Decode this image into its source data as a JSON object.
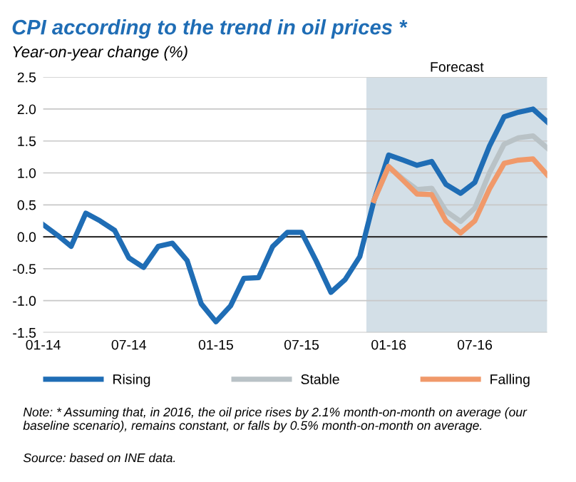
{
  "chart_data": {
    "type": "line",
    "title": "CPI according to the trend in oil prices *",
    "subtitle": "Year-on-year change (%)",
    "x": [
      "2014-01",
      "2014-02",
      "2014-03",
      "2014-04",
      "2014-05",
      "2014-06",
      "2014-07",
      "2014-08",
      "2014-09",
      "2014-10",
      "2014-11",
      "2014-12",
      "2015-01",
      "2015-02",
      "2015-03",
      "2015-04",
      "2015-05",
      "2015-06",
      "2015-07",
      "2015-08",
      "2015-09",
      "2015-10",
      "2015-11",
      "2015-12",
      "2016-01",
      "2016-02",
      "2016-03",
      "2016-04",
      "2016-05",
      "2016-06",
      "2016-07",
      "2016-08",
      "2016-09",
      "2016-10",
      "2016-11",
      "2016-12"
    ],
    "series": [
      {
        "name": "Rising",
        "color": "#1f6db5",
        "values": [
          0.19,
          0.02,
          -0.15,
          0.37,
          0.25,
          0.1,
          -0.33,
          -0.48,
          -0.15,
          -0.1,
          -0.37,
          -1.05,
          -1.33,
          -1.08,
          -0.65,
          -0.64,
          -0.15,
          0.07,
          0.07,
          -0.38,
          -0.87,
          -0.67,
          -0.31,
          0.57,
          1.28,
          1.2,
          1.12,
          1.18,
          0.82,
          0.68,
          0.85,
          1.42,
          1.88,
          1.95,
          2.0,
          1.8
        ]
      },
      {
        "name": "Stable",
        "color": "#b9c2c6",
        "values": [
          null,
          null,
          null,
          null,
          null,
          null,
          null,
          null,
          null,
          null,
          null,
          null,
          null,
          null,
          null,
          null,
          null,
          null,
          null,
          null,
          null,
          null,
          null,
          0.57,
          1.1,
          0.9,
          0.74,
          0.76,
          0.4,
          0.24,
          0.45,
          1.0,
          1.45,
          1.55,
          1.58,
          1.39
        ]
      },
      {
        "name": "Falling",
        "color": "#f0996a",
        "values": [
          null,
          null,
          null,
          null,
          null,
          null,
          null,
          null,
          null,
          null,
          null,
          null,
          null,
          null,
          null,
          null,
          null,
          null,
          null,
          null,
          null,
          null,
          null,
          0.57,
          1.1,
          0.88,
          0.67,
          0.66,
          0.25,
          0.06,
          0.25,
          0.75,
          1.15,
          1.2,
          1.22,
          0.97
        ]
      }
    ],
    "xlim": [
      "2014-01",
      "2016-12"
    ],
    "xticks": [
      {
        "value": "2014-01",
        "label": "01-14"
      },
      {
        "value": "2014-07",
        "label": "07-14"
      },
      {
        "value": "2015-01",
        "label": "01-15"
      },
      {
        "value": "2015-07",
        "label": "07-15"
      },
      {
        "value": "2016-01",
        "label": "01-16"
      },
      {
        "value": "2016-07",
        "label": "07-16"
      }
    ],
    "ylim": [
      -1.5,
      2.5
    ],
    "yticks": [
      -1.5,
      {
        "value": -1,
        "label": "-1.0"
      },
      -0.5,
      {
        "value": 0,
        "label": "0.0"
      },
      0.5,
      {
        "value": 1,
        "label": "1.0"
      },
      1.5,
      {
        "value": 2,
        "label": "2.0"
      },
      2.5
    ],
    "bands": [
      {
        "axis": "x",
        "from": "2015-11-15",
        "to": "2016-12",
        "label": "Forecast",
        "color": "#d3dfe7"
      }
    ],
    "ref_lines": [
      {
        "axis": "y",
        "value": 0,
        "color": "#333333"
      }
    ],
    "grid": "y",
    "legend": "bottom",
    "line_style": "solid",
    "marker": "none",
    "annotations": [
      "Note: * Assuming that, in 2016, the oil price rises by 2.1% month-on-month on average (our baseline scenario), remains constant, or falls by 0.5% month-on-month on average.",
      "Source: based on INE data."
    ]
  }
}
